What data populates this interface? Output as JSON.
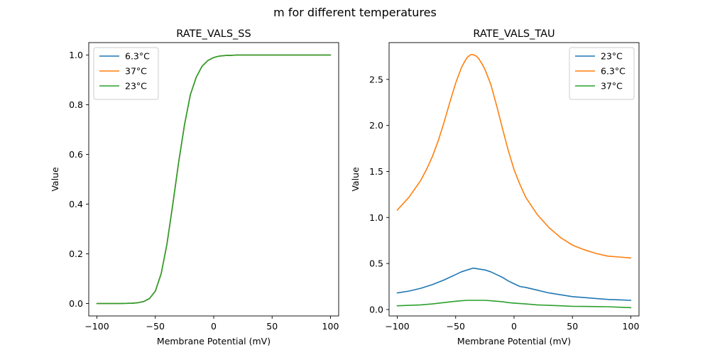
{
  "figure": {
    "suptitle": "m for different temperatures"
  },
  "chart_data": [
    {
      "type": "line",
      "title": "RATE_VALS_SS",
      "xlabel": "Membrane Potential (mV)",
      "ylabel": "Value",
      "xlim": [
        -107,
        107
      ],
      "ylim": [
        -0.05,
        1.05
      ],
      "xticks": [
        -100,
        -50,
        0,
        50,
        100
      ],
      "yticks": [
        0.0,
        0.2,
        0.4,
        0.6,
        0.8,
        1.0
      ],
      "xtick_labels": [
        "−100",
        "−50",
        "0",
        "50",
        "100"
      ],
      "ytick_labels": [
        "0.0",
        "0.2",
        "0.4",
        "0.6",
        "0.8",
        "1.0"
      ],
      "legend_position": "top-left",
      "grid": false,
      "series": [
        {
          "name": "6.3°C",
          "color": "#1f77b4",
          "x": [
            -100,
            -90,
            -80,
            -70,
            -65,
            -60,
            -55,
            -50,
            -45,
            -40,
            -35,
            -30,
            -25,
            -20,
            -15,
            -10,
            -5,
            0,
            5,
            10,
            15,
            20,
            30,
            40,
            50,
            60,
            70,
            80,
            90,
            100
          ],
          "y": [
            0.0,
            0.0,
            0.0,
            0.001,
            0.003,
            0.008,
            0.02,
            0.05,
            0.12,
            0.24,
            0.4,
            0.57,
            0.72,
            0.84,
            0.91,
            0.955,
            0.978,
            0.99,
            0.996,
            0.998,
            0.999,
            1.0,
            1.0,
            1.0,
            1.0,
            1.0,
            1.0,
            1.0,
            1.0,
            1.0
          ]
        },
        {
          "name": "37°C",
          "color": "#ff7f0e",
          "x": [
            -100,
            -90,
            -80,
            -70,
            -65,
            -60,
            -55,
            -50,
            -45,
            -40,
            -35,
            -30,
            -25,
            -20,
            -15,
            -10,
            -5,
            0,
            5,
            10,
            15,
            20,
            30,
            40,
            50,
            60,
            70,
            80,
            90,
            100
          ],
          "y": [
            0.0,
            0.0,
            0.0,
            0.001,
            0.003,
            0.008,
            0.02,
            0.05,
            0.12,
            0.24,
            0.4,
            0.57,
            0.72,
            0.84,
            0.91,
            0.955,
            0.978,
            0.99,
            0.996,
            0.998,
            0.999,
            1.0,
            1.0,
            1.0,
            1.0,
            1.0,
            1.0,
            1.0,
            1.0,
            1.0
          ]
        },
        {
          "name": "23°C",
          "color": "#2ca02c",
          "x": [
            -100,
            -90,
            -80,
            -70,
            -65,
            -60,
            -55,
            -50,
            -45,
            -40,
            -35,
            -30,
            -25,
            -20,
            -15,
            -10,
            -5,
            0,
            5,
            10,
            15,
            20,
            30,
            40,
            50,
            60,
            70,
            80,
            90,
            100
          ],
          "y": [
            0.0,
            0.0,
            0.0,
            0.001,
            0.003,
            0.008,
            0.02,
            0.05,
            0.12,
            0.24,
            0.4,
            0.57,
            0.72,
            0.84,
            0.91,
            0.955,
            0.978,
            0.99,
            0.996,
            0.998,
            0.999,
            1.0,
            1.0,
            1.0,
            1.0,
            1.0,
            1.0,
            1.0,
            1.0,
            1.0
          ]
        }
      ]
    },
    {
      "type": "line",
      "title": "RATE_VALS_TAU",
      "xlabel": "Membrane Potential (mV)",
      "ylabel": "Value",
      "xlim": [
        -107,
        107
      ],
      "ylim": [
        -0.07,
        2.9
      ],
      "xticks": [
        -100,
        -50,
        0,
        50,
        100
      ],
      "yticks": [
        0.0,
        0.5,
        1.0,
        1.5,
        2.0,
        2.5
      ],
      "xtick_labels": [
        "−100",
        "−50",
        "0",
        "50",
        "100"
      ],
      "ytick_labels": [
        "0.0",
        "0.5",
        "1.0",
        "1.5",
        "2.0",
        "2.5"
      ],
      "legend_position": "top-right",
      "grid": false,
      "series": [
        {
          "name": "23°C",
          "color": "#1f77b4",
          "x": [
            -100,
            -90,
            -80,
            -70,
            -60,
            -50,
            -45,
            -40,
            -35,
            -30,
            -25,
            -20,
            -15,
            -10,
            -5,
            0,
            5,
            10,
            20,
            30,
            40,
            50,
            60,
            70,
            80,
            90,
            100
          ],
          "y": [
            0.18,
            0.2,
            0.23,
            0.27,
            0.32,
            0.38,
            0.41,
            0.43,
            0.45,
            0.44,
            0.43,
            0.41,
            0.38,
            0.35,
            0.31,
            0.28,
            0.25,
            0.24,
            0.21,
            0.18,
            0.16,
            0.14,
            0.13,
            0.12,
            0.11,
            0.105,
            0.1
          ]
        },
        {
          "name": "6.3°C",
          "color": "#ff7f0e",
          "x": [
            -100,
            -90,
            -80,
            -75,
            -70,
            -65,
            -60,
            -55,
            -50,
            -45,
            -42,
            -40,
            -37,
            -35,
            -32,
            -30,
            -27,
            -25,
            -20,
            -15,
            -10,
            -5,
            0,
            5,
            10,
            20,
            30,
            40,
            50,
            60,
            70,
            80,
            90,
            100
          ],
          "y": [
            1.08,
            1.22,
            1.4,
            1.52,
            1.66,
            1.83,
            2.03,
            2.25,
            2.46,
            2.63,
            2.7,
            2.74,
            2.77,
            2.77,
            2.75,
            2.72,
            2.66,
            2.61,
            2.45,
            2.22,
            1.97,
            1.73,
            1.52,
            1.36,
            1.22,
            1.03,
            0.89,
            0.78,
            0.7,
            0.65,
            0.61,
            0.58,
            0.57,
            0.56
          ]
        },
        {
          "name": "37°C",
          "color": "#2ca02c",
          "x": [
            -100,
            -90,
            -80,
            -70,
            -60,
            -50,
            -45,
            -40,
            -35,
            -30,
            -25,
            -20,
            -15,
            -10,
            -5,
            0,
            10,
            20,
            30,
            40,
            50,
            60,
            70,
            80,
            90,
            100
          ],
          "y": [
            0.04,
            0.045,
            0.05,
            0.06,
            0.075,
            0.09,
            0.095,
            0.1,
            0.1,
            0.1,
            0.1,
            0.095,
            0.09,
            0.085,
            0.075,
            0.07,
            0.06,
            0.05,
            0.045,
            0.04,
            0.035,
            0.033,
            0.032,
            0.03,
            0.025,
            0.02
          ]
        }
      ]
    }
  ]
}
